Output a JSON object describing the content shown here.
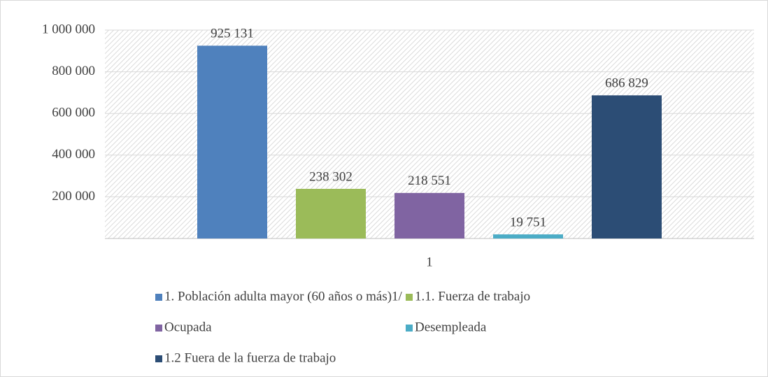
{
  "chart_data": {
    "type": "bar",
    "categories": [
      "1"
    ],
    "series": [
      {
        "name": "1. Población adulta mayor (60 años o más)1/",
        "color": "#4f81bd",
        "values": [
          925131
        ],
        "value_labels": [
          "925 131"
        ]
      },
      {
        "name": "1.1. Fuerza de trabajo",
        "color": "#9bbb59",
        "values": [
          238302
        ],
        "value_labels": [
          "238 302"
        ]
      },
      {
        "name": "Ocupada",
        "color": "#8064a2",
        "values": [
          218551
        ],
        "value_labels": [
          "218 551"
        ]
      },
      {
        "name": "Desempleada",
        "color": "#4bacc6",
        "values": [
          19751
        ],
        "value_labels": [
          "19 751"
        ]
      },
      {
        "name": "1.2 Fuera de la fuerza de trabajo",
        "color": "#2c4d75",
        "values": [
          686829
        ],
        "value_labels": [
          "686 829"
        ]
      }
    ],
    "ylim": [
      0,
      1000000
    ],
    "yticks": [
      {
        "value": 200000,
        "label": "200 000"
      },
      {
        "value": 400000,
        "label": "400 000"
      },
      {
        "value": 600000,
        "label": "600 000"
      },
      {
        "value": 800000,
        "label": "800 000"
      },
      {
        "value": 1000000,
        "label": "1 000 000"
      }
    ],
    "grid": true
  }
}
